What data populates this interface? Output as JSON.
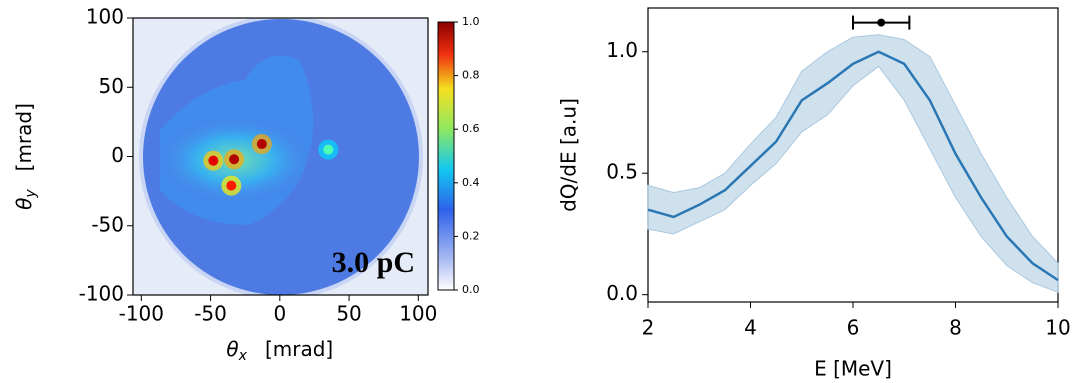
{
  "chart_data": [
    {
      "type": "image",
      "xlabel": {
        "symbol": "θ",
        "sub": "x",
        "unit": "[mrad]"
      },
      "ylabel": {
        "symbol": "θ",
        "sub": "y",
        "unit": "[mrad]"
      },
      "xlim": [
        -106,
        107
      ],
      "ylim": [
        -100,
        100
      ],
      "xticks": [
        -100,
        -50,
        0,
        50,
        100
      ],
      "yticks": [
        -100,
        -50,
        0,
        50,
        100
      ],
      "annotation": "3.0 pC",
      "clim": [
        0,
        1
      ],
      "cticks": [
        {
          "value": 0,
          "label": "0.0"
        },
        {
          "value": 0.2,
          "label": "0.2"
        },
        {
          "value": 0.4,
          "label": "0.4"
        },
        {
          "value": 0.6,
          "label": "0.6"
        },
        {
          "value": 0.8,
          "label": "0.8"
        },
        {
          "value": 1,
          "label": "1.0"
        }
      ],
      "peaks": [
        {
          "x": -48,
          "y": -3,
          "value": 0.9
        },
        {
          "x": -33,
          "y": -2,
          "value": 0.95
        },
        {
          "x": -13,
          "y": 9,
          "value": 0.95
        },
        {
          "x": -35,
          "y": -21,
          "value": 0.85
        },
        {
          "x": 35,
          "y": 5,
          "value": 0.45
        }
      ]
    },
    {
      "type": "line",
      "xlabel": "E  [MeV]",
      "ylabel": "dQ/dE  [a.u]",
      "xlim": [
        2,
        10
      ],
      "ylim": [
        -0.03,
        1.18
      ],
      "xticks": [
        2,
        4,
        6,
        8,
        10
      ],
      "yticks": [
        {
          "value": 0,
          "label": "0.0"
        },
        {
          "value": 0.5,
          "label": "0.5"
        },
        {
          "value": 1,
          "label": "1.0"
        }
      ],
      "color": "#2a77b4",
      "band_color": "#a9c8e0",
      "x": [
        2,
        2.5,
        3,
        3.5,
        4,
        4.5,
        5,
        5.5,
        6,
        6.5,
        7,
        7.5,
        8,
        8.5,
        9,
        9.5,
        10
      ],
      "values": [
        0.35,
        0.32,
        0.37,
        0.43,
        0.53,
        0.63,
        0.8,
        0.87,
        0.95,
        1.0,
        0.95,
        0.8,
        0.58,
        0.4,
        0.24,
        0.13,
        0.06
      ],
      "lower": [
        0.27,
        0.25,
        0.3,
        0.35,
        0.45,
        0.54,
        0.67,
        0.74,
        0.86,
        0.94,
        0.8,
        0.6,
        0.4,
        0.24,
        0.12,
        0.05,
        0.01
      ],
      "upper": [
        0.45,
        0.42,
        0.44,
        0.5,
        0.62,
        0.73,
        0.92,
        1.0,
        1.06,
        1.07,
        1.05,
        0.98,
        0.78,
        0.58,
        0.4,
        0.24,
        0.13
      ],
      "marker": {
        "x": 6.55,
        "y": 1.12,
        "xerr": 0.55
      }
    }
  ]
}
